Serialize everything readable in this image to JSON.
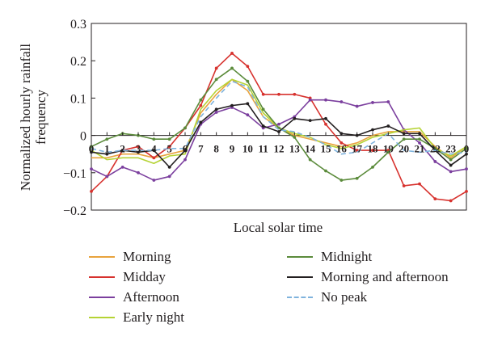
{
  "chart_data": {
    "type": "line",
    "title": "",
    "xlabel": "Local solar time",
    "ylabel": "Normalized hourly rainfall frequency",
    "ylabel_lines": [
      "Normalized hourly rainfall",
      "frequency"
    ],
    "x": [
      0,
      1,
      2,
      3,
      4,
      5,
      6,
      7,
      8,
      9,
      10,
      11,
      12,
      13,
      14,
      15,
      16,
      17,
      18,
      19,
      20,
      21,
      22,
      23,
      24
    ],
    "x_tick_labels": [
      "0",
      "1",
      "2",
      "3",
      "4",
      "5",
      "6",
      "7",
      "8",
      "9",
      "10",
      "11",
      "12",
      "13",
      "14",
      "15",
      "16",
      "17",
      "18",
      "19",
      "20",
      "21",
      "22",
      "23",
      "0"
    ],
    "y_ticks": [
      -0.2,
      -0.1,
      0,
      0.1,
      0.2,
      0.3
    ],
    "y_tick_labels": [
      "−0.2",
      "−0.1",
      "0",
      "0.1",
      "0.2",
      "0.3"
    ],
    "xlim": [
      0,
      24
    ],
    "ylim": [
      -0.2,
      0.3
    ],
    "grid": false,
    "legend_placement": "bottom",
    "series": [
      {
        "name": "Morning",
        "color": "#e8a33d",
        "dash": false,
        "show_markers": false,
        "values": [
          -0.06,
          -0.06,
          -0.05,
          -0.05,
          -0.06,
          -0.05,
          -0.04,
          0.06,
          0.11,
          0.15,
          0.12,
          0.05,
          0.02,
          0.0,
          -0.01,
          -0.02,
          -0.03,
          -0.02,
          0.0,
          0.01,
          0.01,
          0.01,
          -0.03,
          -0.06,
          -0.03
        ]
      },
      {
        "name": "Midday",
        "color": "#d7322e",
        "dash": false,
        "show_markers": true,
        "values": [
          -0.15,
          -0.11,
          -0.04,
          -0.03,
          -0.06,
          -0.03,
          0.02,
          0.08,
          0.18,
          0.22,
          0.185,
          0.11,
          0.11,
          0.11,
          0.1,
          0.03,
          -0.02,
          -0.04,
          -0.04,
          -0.04,
          -0.135,
          -0.13,
          -0.17,
          -0.175,
          -0.15
        ]
      },
      {
        "name": "Afternoon",
        "color": "#7b3f9e",
        "dash": false,
        "show_markers": true,
        "values": [
          -0.09,
          -0.11,
          -0.085,
          -0.1,
          -0.12,
          -0.11,
          -0.065,
          0.03,
          0.062,
          0.075,
          0.055,
          0.02,
          0.03,
          0.05,
          0.095,
          0.095,
          0.09,
          0.078,
          0.088,
          0.09,
          0.015,
          -0.02,
          -0.07,
          -0.097,
          -0.09
        ]
      },
      {
        "name": "Early night",
        "color": "#b5d334",
        "dash": false,
        "show_markers": false,
        "values": [
          -0.04,
          -0.065,
          -0.06,
          -0.06,
          -0.075,
          -0.055,
          -0.05,
          0.07,
          0.12,
          0.15,
          0.135,
          0.06,
          0.02,
          0.005,
          -0.005,
          -0.025,
          -0.035,
          -0.025,
          -0.005,
          0.005,
          0.015,
          0.02,
          -0.035,
          -0.055,
          -0.03
        ]
      },
      {
        "name": "Midnight",
        "color": "#5b8b3b",
        "dash": false,
        "show_markers": true,
        "values": [
          -0.03,
          -0.01,
          0.005,
          0.0,
          -0.01,
          -0.01,
          0.02,
          0.095,
          0.15,
          0.18,
          0.145,
          0.07,
          0.02,
          -0.005,
          -0.065,
          -0.095,
          -0.12,
          -0.115,
          -0.085,
          -0.045,
          -0.01,
          -0.01,
          -0.035,
          -0.065,
          -0.035
        ]
      },
      {
        "name": "Morning and afternoon",
        "color": "#231f20",
        "dash": false,
        "show_markers": true,
        "values": [
          -0.045,
          -0.05,
          -0.04,
          -0.045,
          -0.04,
          -0.085,
          -0.04,
          0.035,
          0.07,
          0.08,
          0.085,
          0.025,
          0.01,
          0.045,
          0.04,
          0.045,
          0.005,
          0.0,
          0.015,
          0.025,
          0.005,
          0.005,
          -0.04,
          -0.08,
          -0.05
        ]
      },
      {
        "name": "No peak",
        "color": "#7fb3dd",
        "dash": true,
        "show_markers": false,
        "values": [
          -0.035,
          -0.045,
          -0.04,
          -0.04,
          -0.04,
          -0.035,
          -0.035,
          0.05,
          0.1,
          0.145,
          0.13,
          0.05,
          0.015,
          0.01,
          -0.005,
          -0.025,
          -0.05,
          -0.045,
          -0.02,
          0.005,
          -0.04,
          -0.045,
          -0.04,
          -0.05,
          -0.045
        ]
      }
    ]
  }
}
